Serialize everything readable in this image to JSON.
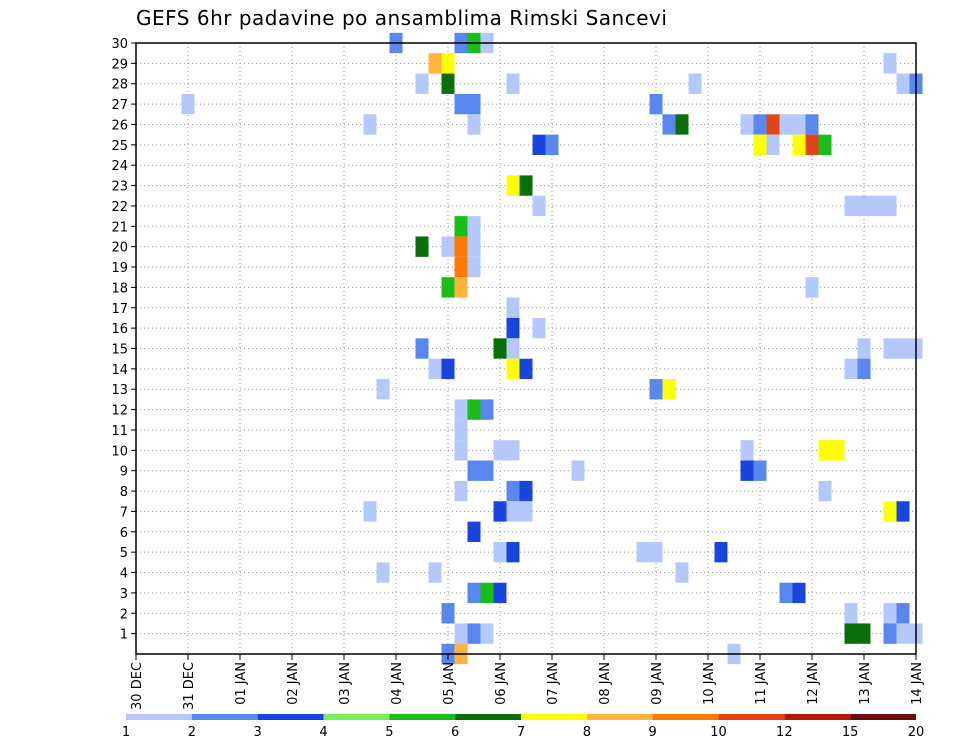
{
  "title": "GEFS 6hr padavine po ansamblima Rimski Sancevi",
  "chart_data": {
    "type": "heatmap",
    "title": "GEFS 6hr padavine po ansamblima Rimski Sancevi",
    "xlabel": "",
    "ylabel": "",
    "x_ticks": [
      "30 DEC",
      "31 DEC",
      "01 JAN",
      "02 JAN",
      "03 JAN",
      "04 JAN",
      "05 JAN",
      "06 JAN",
      "07 JAN",
      "08 JAN",
      "09 JAN",
      "10 JAN",
      "11 JAN",
      "12 JAN",
      "13 JAN",
      "14 JAN"
    ],
    "x_range_days": [
      0,
      15
    ],
    "y_ticks": [
      1,
      2,
      3,
      4,
      5,
      6,
      7,
      8,
      9,
      10,
      11,
      12,
      13,
      14,
      15,
      16,
      17,
      18,
      19,
      20,
      21,
      22,
      23,
      24,
      25,
      26,
      27,
      28,
      29,
      30
    ],
    "y_range": [
      0,
      30
    ],
    "grid": true,
    "colorbar": {
      "labels": [
        "1",
        "2",
        "3",
        "4",
        "5",
        "6",
        "7",
        "8",
        "9",
        "10",
        "12",
        "15",
        "20"
      ],
      "colors": [
        "#b4c8fa",
        "#5a87ef",
        "#1945dc",
        "#78ee5a",
        "#19be19",
        "#0a6e0a",
        "#ffff00",
        "#ffb43c",
        "#ff7a05",
        "#e14614",
        "#b4190a",
        "#6e0a0a"
      ]
    },
    "cells": [
      {
        "t": 5.0,
        "m": 30,
        "v": 2
      },
      {
        "t": 6.25,
        "m": 30,
        "v": 2
      },
      {
        "t": 6.5,
        "m": 30,
        "v": 5
      },
      {
        "t": 6.75,
        "m": 30,
        "v": 1
      },
      {
        "t": 5.75,
        "m": 29,
        "v": 8
      },
      {
        "t": 6.0,
        "m": 29,
        "v": 7
      },
      {
        "t": 14.5,
        "m": 29,
        "v": 1
      },
      {
        "t": 5.5,
        "m": 28,
        "v": 1
      },
      {
        "t": 6.0,
        "m": 28,
        "v": 6
      },
      {
        "t": 7.25,
        "m": 28,
        "v": 1
      },
      {
        "t": 10.75,
        "m": 28,
        "v": 1
      },
      {
        "t": 14.75,
        "m": 28,
        "v": 1
      },
      {
        "t": 15.0,
        "m": 28,
        "v": 2
      },
      {
        "t": 1.0,
        "m": 27,
        "v": 1
      },
      {
        "t": 6.25,
        "m": 27,
        "v": 2
      },
      {
        "t": 6.5,
        "m": 27,
        "v": 2
      },
      {
        "t": 10.0,
        "m": 27,
        "v": 2
      },
      {
        "t": 4.5,
        "m": 26,
        "v": 1
      },
      {
        "t": 6.5,
        "m": 26,
        "v": 1
      },
      {
        "t": 10.25,
        "m": 26,
        "v": 2
      },
      {
        "t": 10.5,
        "m": 26,
        "v": 6
      },
      {
        "t": 11.75,
        "m": 26,
        "v": 1
      },
      {
        "t": 12.0,
        "m": 26,
        "v": 2
      },
      {
        "t": 12.25,
        "m": 26,
        "v": 10
      },
      {
        "t": 12.5,
        "m": 26,
        "v": 1
      },
      {
        "t": 12.75,
        "m": 26,
        "v": 1
      },
      {
        "t": 13.0,
        "m": 26,
        "v": 2
      },
      {
        "t": 7.75,
        "m": 25,
        "v": 3
      },
      {
        "t": 8.0,
        "m": 25,
        "v": 2
      },
      {
        "t": 12.0,
        "m": 25,
        "v": 7
      },
      {
        "t": 12.25,
        "m": 25,
        "v": 1
      },
      {
        "t": 12.75,
        "m": 25,
        "v": 7
      },
      {
        "t": 13.0,
        "m": 25,
        "v": 10
      },
      {
        "t": 13.25,
        "m": 25,
        "v": 5
      },
      {
        "t": 7.25,
        "m": 23,
        "v": 7
      },
      {
        "t": 7.5,
        "m": 23,
        "v": 6
      },
      {
        "t": 7.75,
        "m": 22,
        "v": 1
      },
      {
        "t": 13.75,
        "m": 22,
        "v": 1
      },
      {
        "t": 14.0,
        "m": 22,
        "v": 1
      },
      {
        "t": 14.25,
        "m": 22,
        "v": 1
      },
      {
        "t": 14.5,
        "m": 22,
        "v": 1
      },
      {
        "t": 6.25,
        "m": 21,
        "v": 5
      },
      {
        "t": 6.5,
        "m": 21,
        "v": 1
      },
      {
        "t": 5.5,
        "m": 20,
        "v": 6
      },
      {
        "t": 6.0,
        "m": 20,
        "v": 1
      },
      {
        "t": 6.25,
        "m": 20,
        "v": 9
      },
      {
        "t": 6.5,
        "m": 20,
        "v": 1
      },
      {
        "t": 6.25,
        "m": 19,
        "v": 9
      },
      {
        "t": 6.5,
        "m": 19,
        "v": 1
      },
      {
        "t": 6.0,
        "m": 18,
        "v": 5
      },
      {
        "t": 6.25,
        "m": 18,
        "v": 8
      },
      {
        "t": 13.0,
        "m": 18,
        "v": 1
      },
      {
        "t": 7.25,
        "m": 17,
        "v": 1
      },
      {
        "t": 7.25,
        "m": 16,
        "v": 3
      },
      {
        "t": 7.75,
        "m": 16,
        "v": 1
      },
      {
        "t": 5.5,
        "m": 15,
        "v": 2
      },
      {
        "t": 7.0,
        "m": 15,
        "v": 6
      },
      {
        "t": 7.25,
        "m": 15,
        "v": 1
      },
      {
        "t": 14.0,
        "m": 15,
        "v": 1
      },
      {
        "t": 14.5,
        "m": 15,
        "v": 1
      },
      {
        "t": 14.75,
        "m": 15,
        "v": 1
      },
      {
        "t": 15.0,
        "m": 15,
        "v": 1
      },
      {
        "t": 5.75,
        "m": 14,
        "v": 1
      },
      {
        "t": 6.0,
        "m": 14,
        "v": 3
      },
      {
        "t": 7.25,
        "m": 14,
        "v": 7
      },
      {
        "t": 7.5,
        "m": 14,
        "v": 3
      },
      {
        "t": 13.75,
        "m": 14,
        "v": 1
      },
      {
        "t": 14.0,
        "m": 14,
        "v": 2
      },
      {
        "t": 4.75,
        "m": 13,
        "v": 1
      },
      {
        "t": 10.0,
        "m": 13,
        "v": 2
      },
      {
        "t": 10.25,
        "m": 13,
        "v": 7
      },
      {
        "t": 6.25,
        "m": 12,
        "v": 1
      },
      {
        "t": 6.5,
        "m": 12,
        "v": 5
      },
      {
        "t": 6.75,
        "m": 12,
        "v": 2
      },
      {
        "t": 6.25,
        "m": 11,
        "v": 1
      },
      {
        "t": 6.25,
        "m": 10,
        "v": 1
      },
      {
        "t": 7.0,
        "m": 10,
        "v": 1
      },
      {
        "t": 7.25,
        "m": 10,
        "v": 1
      },
      {
        "t": 11.75,
        "m": 10,
        "v": 1
      },
      {
        "t": 13.25,
        "m": 10,
        "v": 7
      },
      {
        "t": 13.5,
        "m": 10,
        "v": 7
      },
      {
        "t": 6.5,
        "m": 9,
        "v": 2
      },
      {
        "t": 6.75,
        "m": 9,
        "v": 2
      },
      {
        "t": 8.5,
        "m": 9,
        "v": 1
      },
      {
        "t": 11.75,
        "m": 9,
        "v": 3
      },
      {
        "t": 12.0,
        "m": 9,
        "v": 2
      },
      {
        "t": 6.25,
        "m": 8,
        "v": 1
      },
      {
        "t": 7.25,
        "m": 8,
        "v": 2
      },
      {
        "t": 7.5,
        "m": 8,
        "v": 3
      },
      {
        "t": 13.25,
        "m": 8,
        "v": 1
      },
      {
        "t": 4.5,
        "m": 7,
        "v": 1
      },
      {
        "t": 7.0,
        "m": 7,
        "v": 3
      },
      {
        "t": 7.25,
        "m": 7,
        "v": 1
      },
      {
        "t": 7.5,
        "m": 7,
        "v": 1
      },
      {
        "t": 14.5,
        "m": 7,
        "v": 7
      },
      {
        "t": 14.75,
        "m": 7,
        "v": 3
      },
      {
        "t": 6.5,
        "m": 6,
        "v": 3
      },
      {
        "t": 7.0,
        "m": 5,
        "v": 1
      },
      {
        "t": 7.25,
        "m": 5,
        "v": 3
      },
      {
        "t": 9.75,
        "m": 5,
        "v": 1
      },
      {
        "t": 10.0,
        "m": 5,
        "v": 1
      },
      {
        "t": 11.25,
        "m": 5,
        "v": 3
      },
      {
        "t": 4.75,
        "m": 4,
        "v": 1
      },
      {
        "t": 5.75,
        "m": 4,
        "v": 1
      },
      {
        "t": 10.5,
        "m": 4,
        "v": 1
      },
      {
        "t": 6.5,
        "m": 3,
        "v": 2
      },
      {
        "t": 6.75,
        "m": 3,
        "v": 5
      },
      {
        "t": 7.0,
        "m": 3,
        "v": 3
      },
      {
        "t": 12.5,
        "m": 3,
        "v": 2
      },
      {
        "t": 12.75,
        "m": 3,
        "v": 3
      },
      {
        "t": 6.0,
        "m": 2,
        "v": 2
      },
      {
        "t": 13.75,
        "m": 2,
        "v": 1
      },
      {
        "t": 14.5,
        "m": 2,
        "v": 1
      },
      {
        "t": 14.75,
        "m": 2,
        "v": 2
      },
      {
        "t": 6.25,
        "m": 1,
        "v": 1
      },
      {
        "t": 6.5,
        "m": 1,
        "v": 2
      },
      {
        "t": 6.75,
        "m": 1,
        "v": 1
      },
      {
        "t": 13.75,
        "m": 1,
        "v": 6
      },
      {
        "t": 14.0,
        "m": 1,
        "v": 6
      },
      {
        "t": 14.5,
        "m": 1,
        "v": 2
      },
      {
        "t": 14.75,
        "m": 1,
        "v": 1
      },
      {
        "t": 15.0,
        "m": 1,
        "v": 1
      },
      {
        "t": 6.0,
        "m": 0,
        "v": 2
      },
      {
        "t": 6.25,
        "m": 0,
        "v": 8
      },
      {
        "t": 11.5,
        "m": 0,
        "v": 1
      }
    ]
  }
}
